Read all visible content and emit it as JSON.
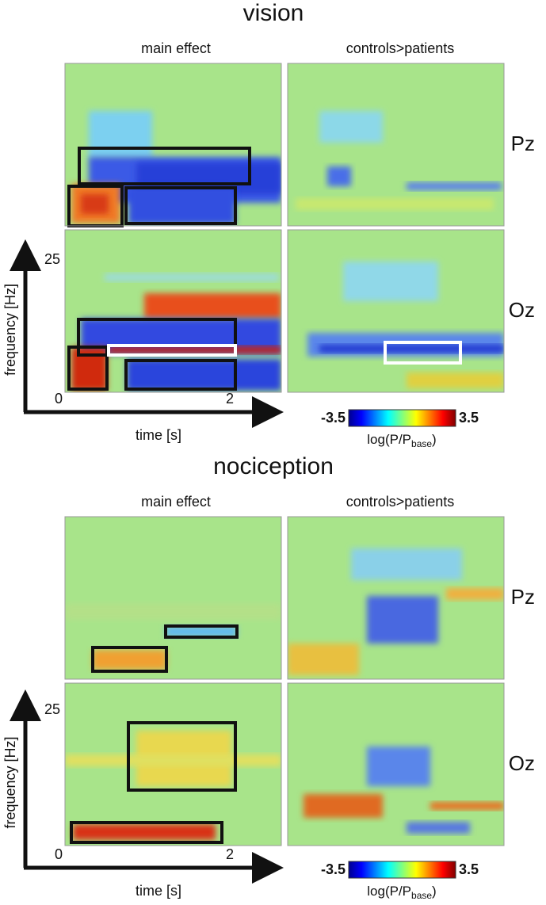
{
  "sections": [
    {
      "title": "vision",
      "columns": [
        "main effect",
        "controls>patients"
      ],
      "rows": [
        "Pz",
        "Oz"
      ],
      "y_axis": {
        "label": "frequency [Hz]",
        "tick": "25",
        "origin": "0"
      },
      "x_axis": {
        "label": "time [s]",
        "tick": "2"
      },
      "colorbar": {
        "min": "-3.5",
        "max": "3.5",
        "label": "log(P/P",
        "subscript": "base",
        "suffix": ")"
      }
    },
    {
      "title": "nociception",
      "columns": [
        "main effect",
        "controls>patients"
      ],
      "rows": [
        "Pz",
        "Oz"
      ],
      "y_axis": {
        "label": "frequency [Hz]",
        "tick": "25",
        "origin": "0"
      },
      "x_axis": {
        "label": "time [s]",
        "tick": "2"
      },
      "colorbar": {
        "min": "-3.5",
        "max": "3.5",
        "label": "log(P/P",
        "subscript": "base",
        "suffix": ")"
      }
    }
  ]
}
